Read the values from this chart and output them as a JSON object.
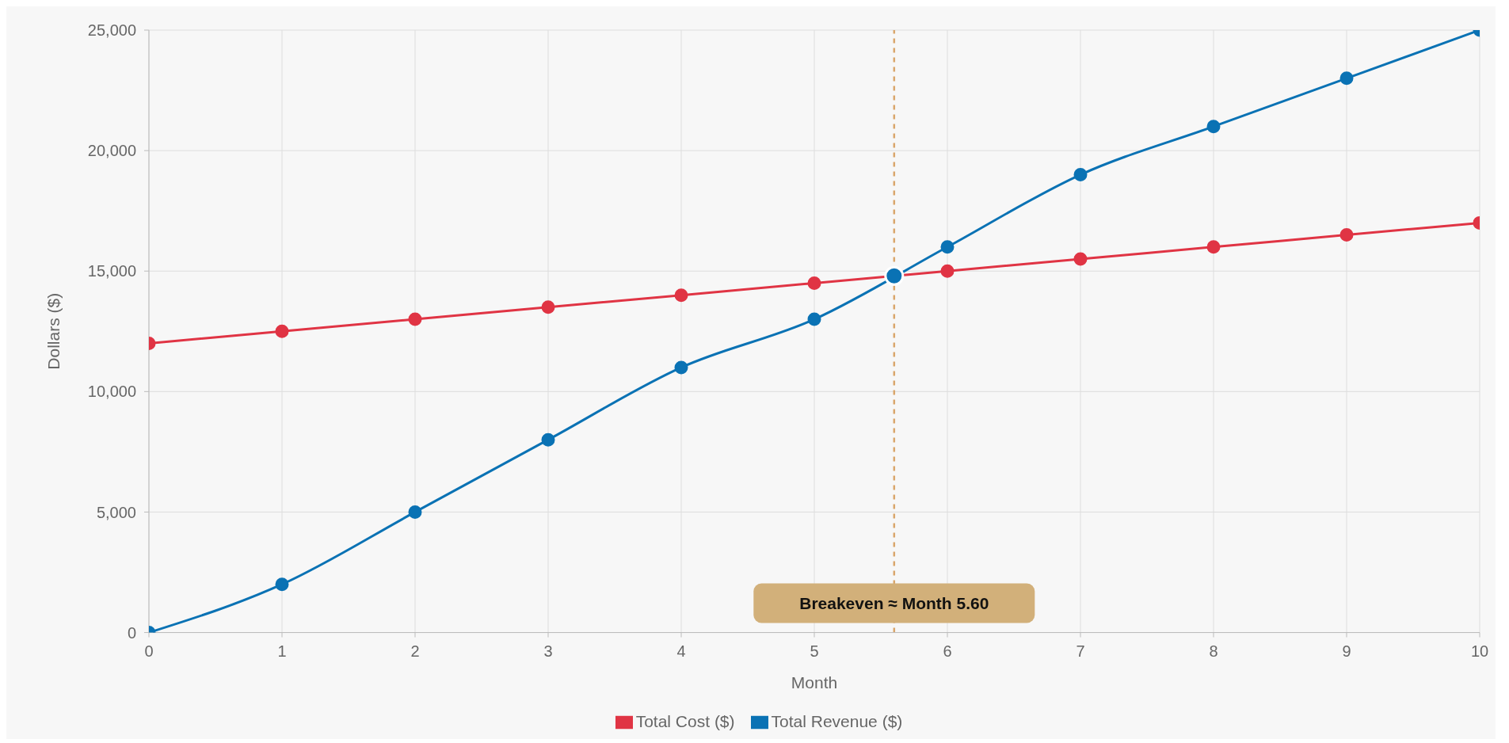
{
  "chart_data": {
    "type": "line",
    "xlabel": "Month",
    "ylabel": "Dollars ($)",
    "x": [
      0,
      1,
      2,
      3,
      4,
      5,
      6,
      7,
      8,
      9,
      10
    ],
    "series": [
      {
        "name": "Total Cost ($)",
        "color": "#e03444",
        "values": [
          12000,
          12500,
          13000,
          13500,
          14000,
          14500,
          15000,
          15500,
          16000,
          16500,
          17000
        ]
      },
      {
        "name": "Total Revenue ($)",
        "color": "#0a72b4",
        "values": [
          0,
          2000,
          5000,
          8000,
          11000,
          13000,
          16000,
          19000,
          21000,
          23000,
          25000
        ]
      },
      {
        "type": "scatter",
        "color": "#0a72b4",
        "x": [
          5.6
        ],
        "values": [
          14800
        ]
      }
    ],
    "xlim": [
      0,
      10
    ],
    "xticks": [
      0,
      1,
      2,
      3,
      4,
      5,
      6,
      7,
      8,
      9,
      10
    ],
    "ylim": [
      0,
      25000
    ],
    "yticks": [
      {
        "value": 0,
        "label": "0"
      },
      {
        "value": 5000,
        "label": "5,000"
      },
      {
        "value": 10000,
        "label": "10,000"
      },
      {
        "value": 15000,
        "label": "15,000"
      },
      {
        "value": 20000,
        "label": "20,000"
      },
      {
        "value": 25000,
        "label": "25,000"
      }
    ],
    "ref_lines": [
      {
        "axis": "x",
        "value": 5.6,
        "label": "Breakeven ≈ Month 5.60",
        "color": "#d9a66b",
        "line_style": "dashed"
      }
    ],
    "grid": true,
    "legend": "bottom",
    "marker": "circle",
    "line_style": "solid"
  }
}
